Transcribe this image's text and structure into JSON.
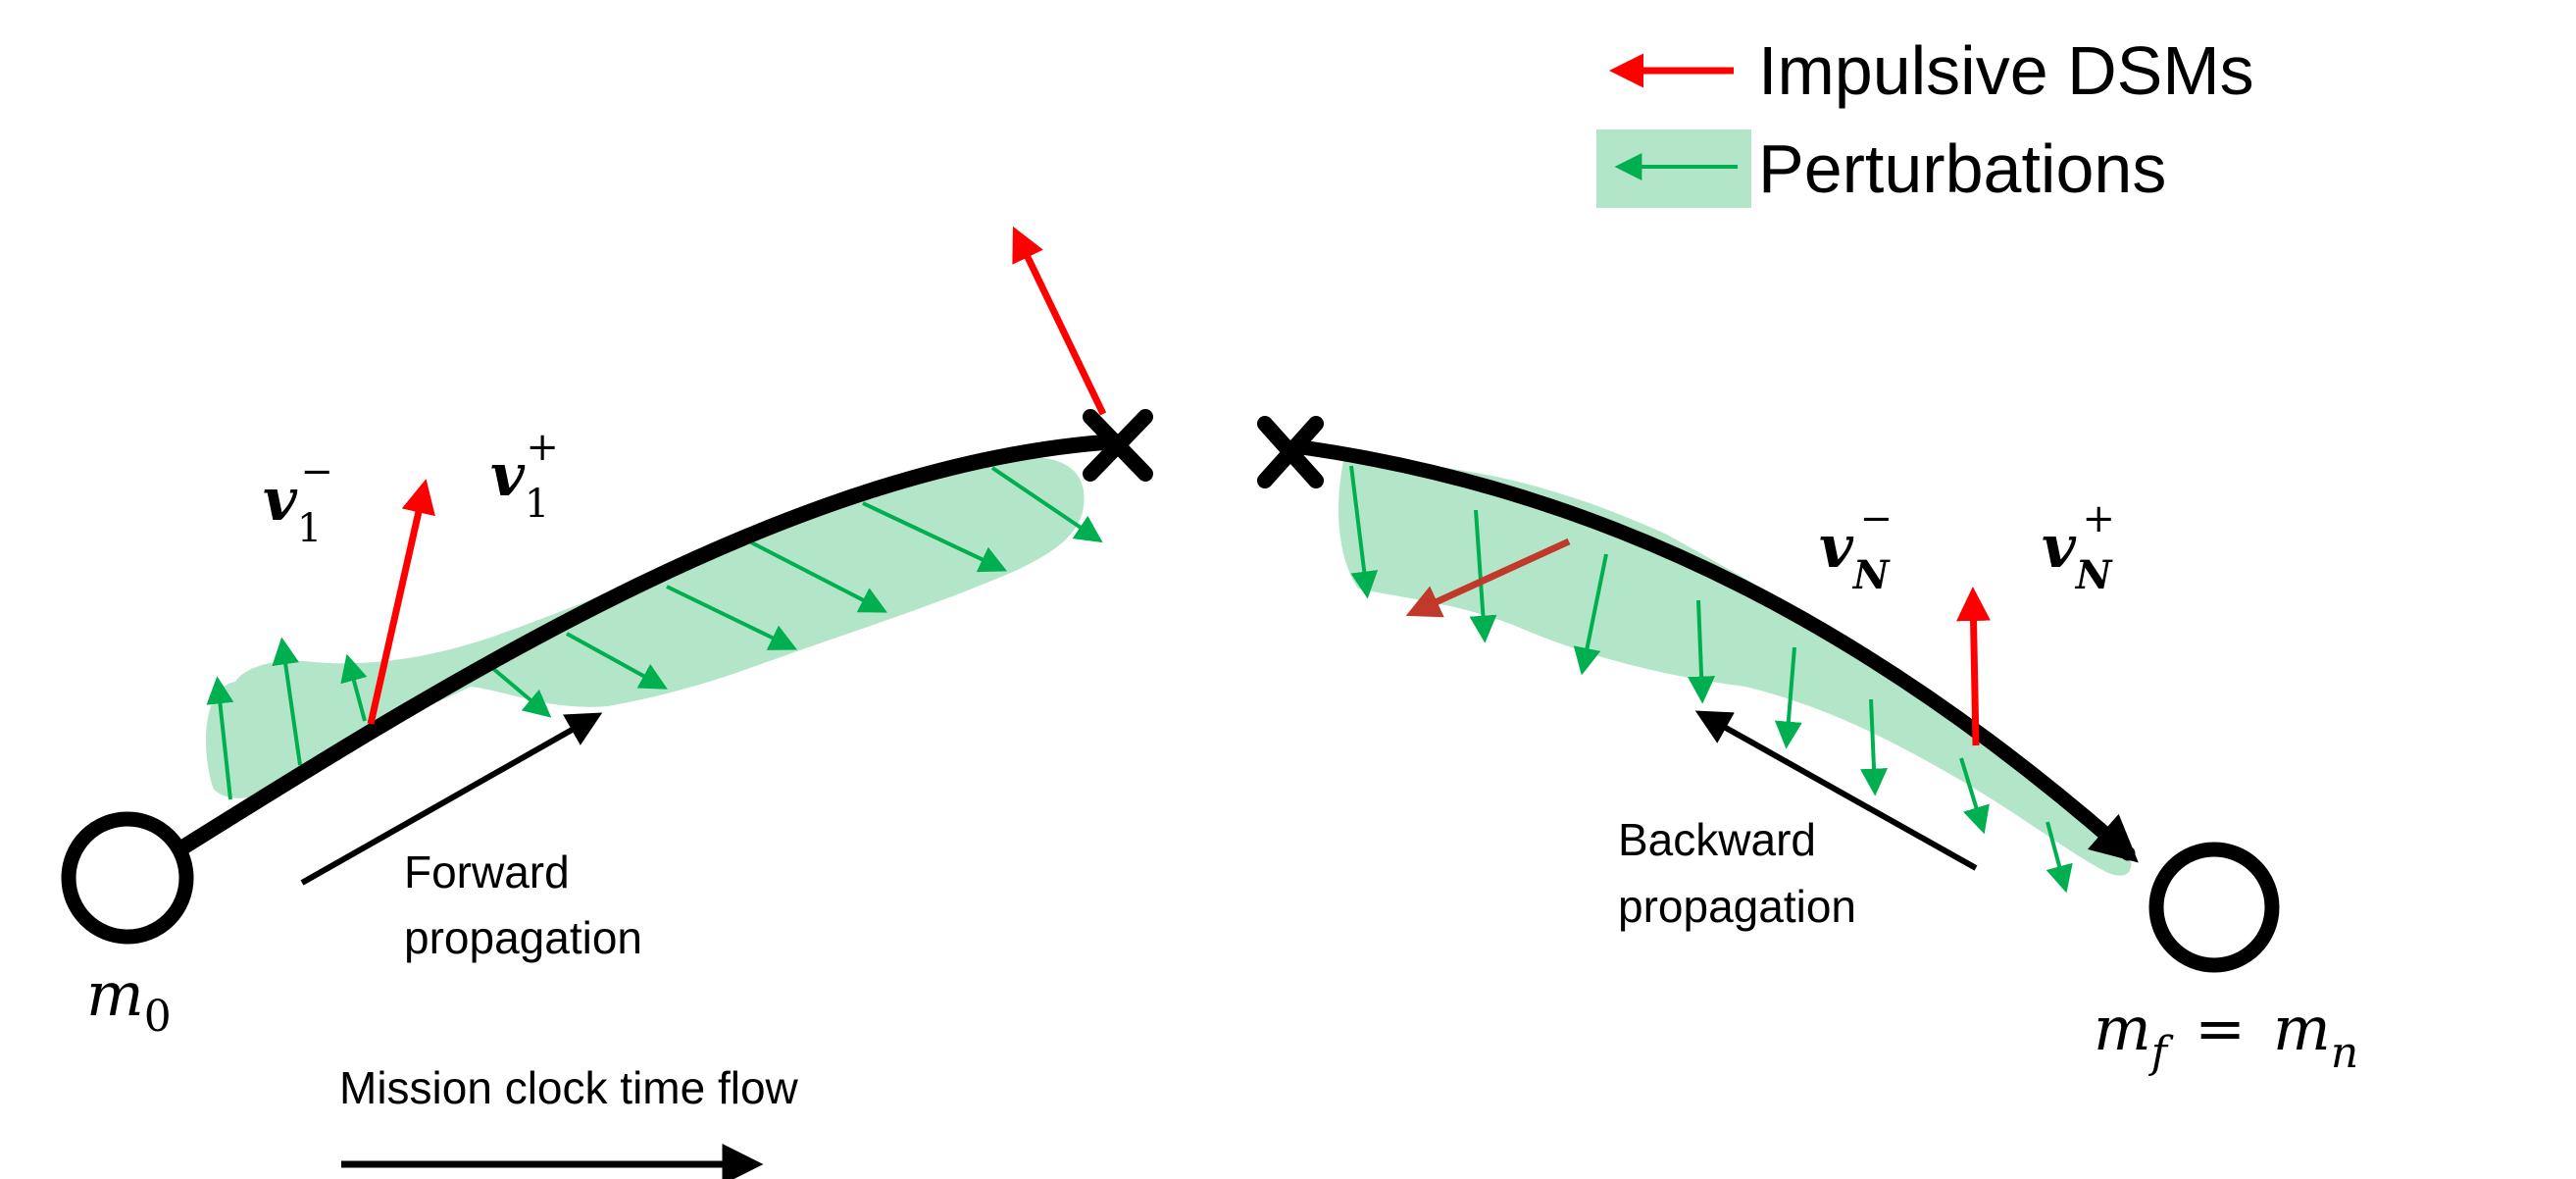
{
  "legend": {
    "dsm_label": "Impulsive DSMs",
    "perturbation_label": "Perturbations"
  },
  "labels": {
    "v1_minus": {
      "base": "v",
      "sub": "1",
      "sup": "−"
    },
    "v1_plus": {
      "base": "v",
      "sub": "1",
      "sup": "+"
    },
    "vN_minus": {
      "base": "v",
      "sub": "N",
      "sup": "−"
    },
    "vN_plus": {
      "base": "v",
      "sub": "N",
      "sup": "+"
    },
    "m0": {
      "base": "m",
      "sub": "0"
    },
    "mf_left": {
      "base": "m",
      "sub": "f"
    },
    "equals": "=",
    "mn_right": {
      "base": "m",
      "sub": "n"
    },
    "forward_line1": "Forward",
    "forward_line2": "propagation",
    "backward_line1": "Backward",
    "backward_line2": "propagation",
    "time_flow": "Mission clock time flow"
  },
  "colors": {
    "dsm_arrow": "#ff0000",
    "dsm_arrow_dark": "#c0392b",
    "perturbation_arrow": "#00b050",
    "perturbation_fill": "#b3e6c8",
    "trajectory": "#000000"
  }
}
